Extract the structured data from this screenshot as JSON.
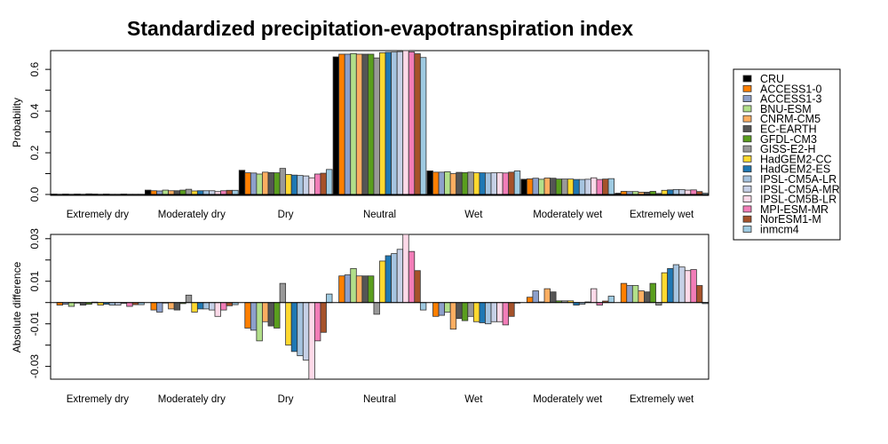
{
  "chart_data": [
    {
      "type": "bar",
      "title": "Standardized precipitation-evapotranspiration index",
      "xlabel": "",
      "ylabel": "Probability",
      "ylim": [
        0,
        0.69
      ],
      "yticks": [
        0.0,
        0.2,
        0.4,
        0.6
      ],
      "ytick_labels": [
        "0.0",
        "0.2",
        "0.4",
        "0.6"
      ],
      "grid": false,
      "legend_position": "right",
      "categories": [
        "Extremely dry",
        "Moderately dry",
        "Dry",
        "Neutral",
        "Wet",
        "Moderately wet",
        "Extremely wet"
      ],
      "series": [
        {
          "name": "CRU",
          "color": "#000000",
          "values": [
            0.002,
            0.021,
            0.116,
            0.66,
            0.113,
            0.073,
            0.006
          ]
        },
        {
          "name": "ACCESS1-0",
          "color": "#ff7f00",
          "values": [
            0.001,
            0.018,
            0.104,
            0.673,
            0.107,
            0.075,
            0.015
          ]
        },
        {
          "name": "ACCESS1-3",
          "color": "#8da0cb",
          "values": [
            0.002,
            0.017,
            0.103,
            0.673,
            0.107,
            0.078,
            0.014
          ]
        },
        {
          "name": "BNU-ESM",
          "color": "#b2df8a",
          "values": [
            0.001,
            0.021,
            0.098,
            0.676,
            0.109,
            0.073,
            0.014
          ]
        },
        {
          "name": "CNRM-CM5",
          "color": "#fdae61",
          "values": [
            0.002,
            0.018,
            0.107,
            0.673,
            0.1,
            0.079,
            0.011
          ]
        },
        {
          "name": "EC-EARTH",
          "color": "#555555",
          "values": [
            0.001,
            0.018,
            0.105,
            0.673,
            0.106,
            0.078,
            0.011
          ]
        },
        {
          "name": "GFDL-CM3",
          "color": "#5a9e1e",
          "values": [
            0.003,
            0.021,
            0.104,
            0.673,
            0.105,
            0.074,
            0.015
          ]
        },
        {
          "name": "GISS-E2-H",
          "color": "#999999",
          "values": [
            0.002,
            0.025,
            0.125,
            0.655,
            0.107,
            0.074,
            0.005
          ]
        },
        {
          "name": "HadGEM2-CC",
          "color": "#ffd92f",
          "values": [
            0.001,
            0.017,
            0.096,
            0.68,
            0.104,
            0.074,
            0.02
          ]
        },
        {
          "name": "HadGEM2-ES",
          "color": "#1f78b4",
          "values": [
            0.002,
            0.018,
            0.093,
            0.682,
            0.104,
            0.072,
            0.022
          ]
        },
        {
          "name": "IPSL-CM5A-LR",
          "color": "#a6c4e0",
          "values": [
            0.001,
            0.018,
            0.091,
            0.683,
            0.103,
            0.072,
            0.024
          ]
        },
        {
          "name": "IPSL-CM5A-MR",
          "color": "#c6d0e6",
          "values": [
            0.001,
            0.018,
            0.089,
            0.685,
            0.104,
            0.073,
            0.023
          ]
        },
        {
          "name": "IPSL-CM5B-LR",
          "color": "#fdd9e8",
          "values": [
            0.002,
            0.014,
            0.08,
            0.693,
            0.104,
            0.08,
            0.021
          ]
        },
        {
          "name": "MPI-ESM-MR",
          "color": "#f27db8",
          "values": [
            0.001,
            0.018,
            0.098,
            0.684,
            0.103,
            0.072,
            0.022
          ]
        },
        {
          "name": "NorESM1-M",
          "color": "#a6522a",
          "values": [
            0.001,
            0.02,
            0.102,
            0.675,
            0.107,
            0.074,
            0.014
          ]
        },
        {
          "name": "inmcm4",
          "color": "#9ecae1",
          "values": [
            0.001,
            0.02,
            0.12,
            0.657,
            0.113,
            0.076,
            0.006
          ]
        }
      ]
    },
    {
      "type": "bar",
      "title": "",
      "xlabel": "",
      "ylabel": "Absolute difference",
      "ylim": [
        -0.036,
        0.032
      ],
      "yticks": [
        0.03,
        0.01,
        -0.01,
        -0.03
      ],
      "ytick_labels": [
        "0.03",
        "0.01",
        "-0.01",
        "-0.03"
      ],
      "minor_yticks": [
        0.02,
        0.0,
        -0.02
      ],
      "grid": false,
      "categories": [
        "Extremely dry",
        "Moderately dry",
        "Dry",
        "Neutral",
        "Wet",
        "Moderately wet",
        "Extremely wet"
      ],
      "series": [
        {
          "name": "ACCESS1-0",
          "color": "#ff7f00",
          "values": [
            -0.0012,
            -0.0035,
            -0.012,
            0.0125,
            -0.0065,
            0.0025,
            0.009
          ]
        },
        {
          "name": "ACCESS1-3",
          "color": "#8da0cb",
          "values": [
            -0.0008,
            -0.0045,
            -0.013,
            0.013,
            -0.006,
            0.0055,
            0.008
          ]
        },
        {
          "name": "BNU-ESM",
          "color": "#b2df8a",
          "values": [
            -0.0018,
            -0.0002,
            -0.018,
            0.016,
            -0.0045,
            0.0003,
            0.008
          ]
        },
        {
          "name": "CNRM-CM5",
          "color": "#fdae61",
          "values": [
            -0.0002,
            -0.003,
            -0.009,
            0.0125,
            -0.0125,
            0.0065,
            0.0055
          ]
        },
        {
          "name": "EC-EARTH",
          "color": "#555555",
          "values": [
            -0.0012,
            -0.0035,
            -0.011,
            0.0125,
            -0.0075,
            0.005,
            0.005
          ]
        },
        {
          "name": "GFDL-CM3",
          "color": "#5a9e1e",
          "values": [
            -0.0008,
            -0.0005,
            -0.012,
            0.0125,
            -0.0085,
            0.0008,
            0.009
          ]
        },
        {
          "name": "GISS-E2-H",
          "color": "#999999",
          "values": [
            0.0002,
            0.0035,
            0.009,
            -0.0055,
            -0.0065,
            0.0008,
            -0.0012
          ]
        },
        {
          "name": "HadGEM2-CC",
          "color": "#ffd92f",
          "values": [
            -0.0012,
            -0.0045,
            -0.02,
            0.0195,
            -0.009,
            0.0008,
            0.014
          ]
        },
        {
          "name": "HadGEM2-ES",
          "color": "#1f78b4",
          "values": [
            -0.0008,
            -0.003,
            -0.023,
            0.022,
            -0.0095,
            -0.0012,
            0.016
          ]
        },
        {
          "name": "IPSL-CM5A-LR",
          "color": "#a6c4e0",
          "values": [
            -0.0012,
            -0.003,
            -0.025,
            0.023,
            -0.01,
            -0.0008,
            0.0178
          ]
        },
        {
          "name": "IPSL-CM5A-MR",
          "color": "#c6d0e6",
          "values": [
            -0.0012,
            -0.0035,
            -0.027,
            0.025,
            -0.009,
            0.0003,
            0.0167
          ]
        },
        {
          "name": "IPSL-CM5B-LR",
          "color": "#fdd9e8",
          "values": [
            -0.0004,
            -0.0065,
            -0.036,
            0.033,
            -0.009,
            0.0065,
            0.015
          ]
        },
        {
          "name": "MPI-ESM-MR",
          "color": "#f27db8",
          "values": [
            -0.0018,
            -0.0035,
            -0.018,
            0.024,
            -0.0105,
            -0.0012,
            0.0155
          ]
        },
        {
          "name": "NorESM1-M",
          "color": "#a6522a",
          "values": [
            -0.001,
            -0.0015,
            -0.014,
            0.015,
            -0.0065,
            0.0007,
            0.008
          ]
        },
        {
          "name": "inmcm4",
          "color": "#9ecae1",
          "values": [
            -0.001,
            -0.001,
            0.004,
            -0.0035,
            -0.0002,
            0.003,
            -0.0005
          ]
        }
      ]
    }
  ],
  "legend": {
    "entries": [
      "CRU",
      "ACCESS1-0",
      "ACCESS1-3",
      "BNU-ESM",
      "CNRM-CM5",
      "EC-EARTH",
      "GFDL-CM3",
      "GISS-E2-H",
      "HadGEM2-CC",
      "HadGEM2-ES",
      "IPSL-CM5A-LR",
      "IPSL-CM5A-MR",
      "IPSL-CM5B-LR",
      "MPI-ESM-MR",
      "NorESM1-M",
      "inmcm4"
    ],
    "colors": [
      "#000000",
      "#ff7f00",
      "#8da0cb",
      "#b2df8a",
      "#fdae61",
      "#555555",
      "#5a9e1e",
      "#999999",
      "#ffd92f",
      "#1f78b4",
      "#a6c4e0",
      "#c6d0e6",
      "#fdd9e8",
      "#f27db8",
      "#a6522a",
      "#9ecae1"
    ]
  }
}
